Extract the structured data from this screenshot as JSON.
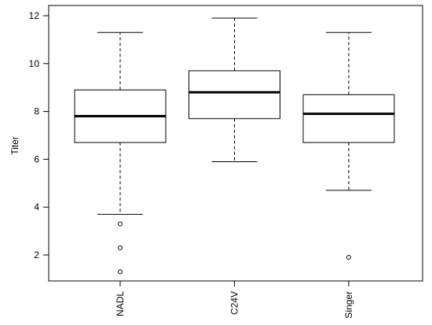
{
  "chart_data": {
    "type": "boxplot",
    "title": "",
    "xlabel": "",
    "ylabel": "Titer",
    "ylim": [
      1,
      12.2
    ],
    "yticks": [
      2,
      4,
      6,
      8,
      10,
      12
    ],
    "categories": [
      "NADL",
      "C24V",
      "Singer"
    ],
    "boxes": [
      {
        "category": "NADL",
        "whisker_low": 3.7,
        "q1": 6.7,
        "median": 7.8,
        "q3": 8.9,
        "whisker_high": 11.3,
        "outliers": [
          3.3,
          2.3,
          1.3
        ]
      },
      {
        "category": "C24V",
        "whisker_low": 5.9,
        "q1": 7.7,
        "median": 8.8,
        "q3": 9.7,
        "whisker_high": 11.9,
        "outliers": []
      },
      {
        "category": "Singer",
        "whisker_low": 4.7,
        "q1": 6.7,
        "median": 7.9,
        "q3": 8.7,
        "whisker_high": 11.3,
        "outliers": [
          1.9
        ]
      }
    ],
    "grid": false,
    "legend": "none"
  }
}
